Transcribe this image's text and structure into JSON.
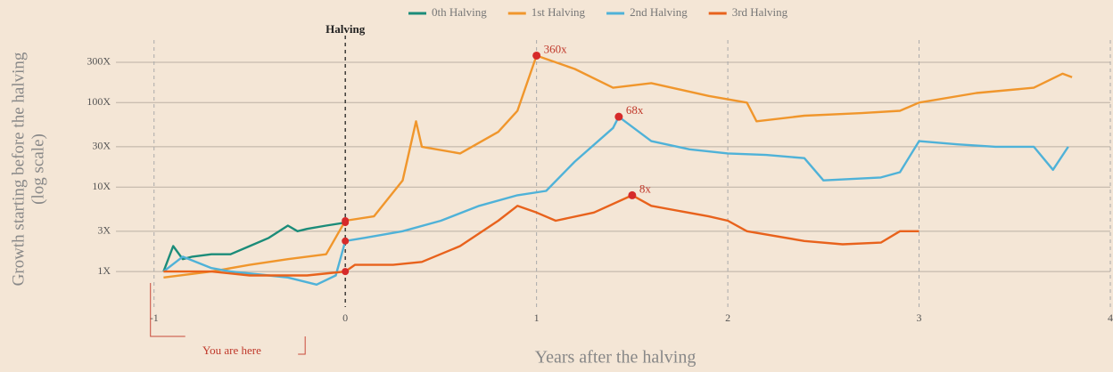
{
  "chart_data": {
    "type": "line",
    "ylabel": [
      "Growth starting before the halving",
      "(log scale)"
    ],
    "xlabel": "Years after the halving",
    "halving_label": "Halving",
    "you_are_here": "You are here",
    "log_y": true,
    "grid": true,
    "legend": "top",
    "xlim": [
      -1.05,
      4
    ],
    "xticks": [
      -1,
      0,
      1,
      2,
      3,
      4
    ],
    "ylim": [
      0.38,
      550
    ],
    "yticks": [
      {
        "value": 1,
        "label": "1X"
      },
      {
        "value": 3,
        "label": "3X"
      },
      {
        "value": 10,
        "label": "10X"
      },
      {
        "value": 30,
        "label": "30X"
      },
      {
        "value": 100,
        "label": "100X"
      },
      {
        "value": 300,
        "label": "300X"
      }
    ],
    "series": [
      {
        "name": "0th Halving",
        "color": "#1b8c79",
        "x": [
          -0.95,
          -0.9,
          -0.85,
          -0.8,
          -0.7,
          -0.6,
          -0.5,
          -0.4,
          -0.3,
          -0.25,
          -0.2,
          -0.1,
          0
        ],
        "values": [
          1,
          2,
          1.4,
          1.5,
          1.6,
          1.6,
          2,
          2.5,
          3.5,
          3,
          3.2,
          3.5,
          3.8
        ]
      },
      {
        "name": "1st Halving",
        "color": "#f0962c",
        "x": [
          -0.95,
          -0.7,
          -0.5,
          -0.3,
          -0.1,
          0,
          0.15,
          0.3,
          0.37,
          0.4,
          0.6,
          0.8,
          0.9,
          1,
          1.2,
          1.4,
          1.6,
          1.9,
          2.1,
          2.15,
          2.4,
          2.7,
          2.9,
          3,
          3.3,
          3.6,
          3.75,
          3.8
        ],
        "values": [
          0.85,
          1,
          1.2,
          1.4,
          1.6,
          4,
          4.5,
          12,
          60,
          30,
          25,
          45,
          80,
          360,
          250,
          150,
          170,
          120,
          100,
          60,
          70,
          75,
          80,
          100,
          130,
          150,
          220,
          200
        ]
      },
      {
        "name": "2nd Halving",
        "color": "#4fb2d8",
        "x": [
          -0.95,
          -0.85,
          -0.7,
          -0.6,
          -0.4,
          -0.3,
          -0.15,
          -0.05,
          0,
          0.1,
          0.3,
          0.5,
          0.7,
          0.9,
          1.05,
          1.2,
          1.4,
          1.43,
          1.6,
          1.8,
          2,
          2.2,
          2.4,
          2.5,
          2.8,
          2.9,
          3,
          3.2,
          3.4,
          3.6,
          3.7,
          3.78
        ],
        "values": [
          1,
          1.5,
          1.1,
          1,
          0.9,
          0.85,
          0.7,
          0.9,
          2.3,
          2.5,
          3,
          4,
          6,
          8,
          9,
          20,
          50,
          68,
          35,
          28,
          25,
          24,
          22,
          12,
          13,
          15,
          35,
          32,
          30,
          30,
          16,
          30
        ]
      },
      {
        "name": "3rd Halving",
        "color": "#e8621c",
        "x": [
          -0.95,
          -0.7,
          -0.5,
          -0.2,
          0,
          0.05,
          0.25,
          0.4,
          0.6,
          0.8,
          0.9,
          1,
          1.1,
          1.3,
          1.5,
          1.6,
          1.9,
          2,
          2.1,
          2.4,
          2.6,
          2.8,
          2.9,
          3
        ],
        "values": [
          1,
          1,
          0.9,
          0.9,
          1,
          1.2,
          1.2,
          1.3,
          2,
          4,
          6,
          5,
          4,
          5,
          8,
          6,
          4.5,
          4,
          3,
          2.3,
          2.1,
          2.2,
          3,
          3
        ]
      }
    ],
    "annotations": [
      {
        "label": "360x",
        "x": 1,
        "y": 360
      },
      {
        "label": "68x",
        "x": 1.43,
        "y": 68
      },
      {
        "label": "8x",
        "x": 1.5,
        "y": 8
      }
    ]
  }
}
